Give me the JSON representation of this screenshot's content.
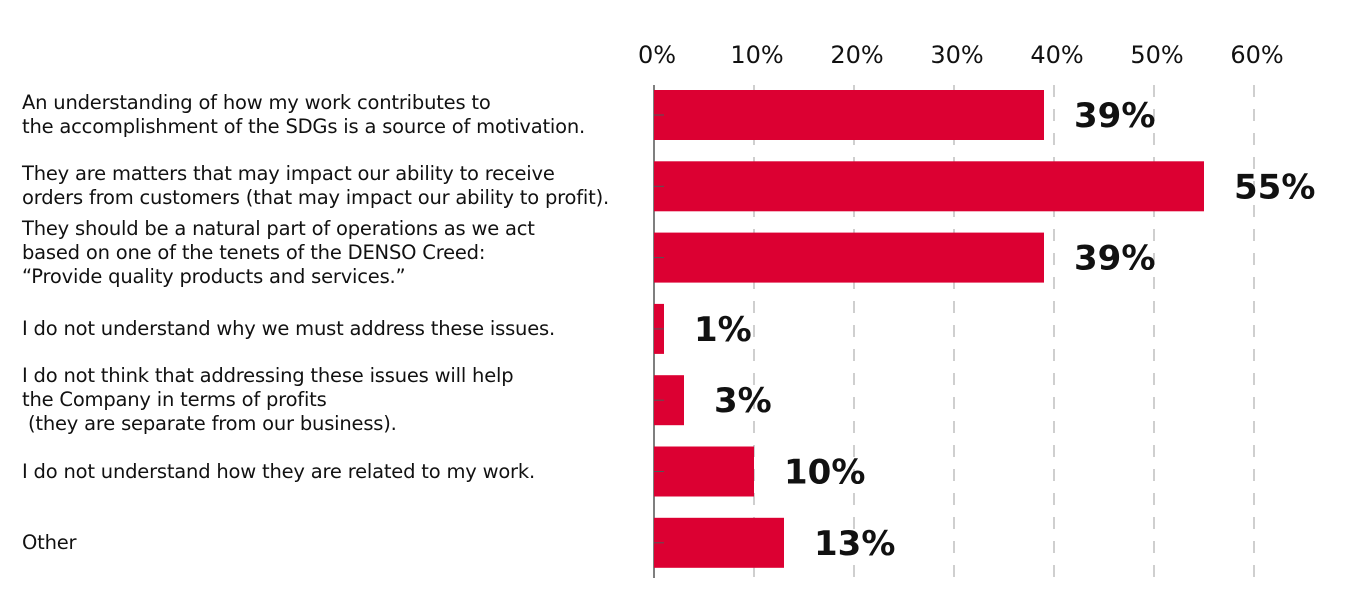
{
  "chart_data": {
    "type": "bar",
    "orientation": "horizontal",
    "categories": [
      [
        "An understanding of how my work contributes to",
        "the accomplishment of the SDGs is a source of motivation."
      ],
      [
        "They are matters that may impact our ability to receive",
        "orders from customers (that may impact our ability to profit)."
      ],
      [
        "They should be a natural part of operations as we act",
        "based on one of the tenets of the DENSO Creed:",
        "“Provide quality products and services.”"
      ],
      [
        "I do not understand why we must address these issues."
      ],
      [
        "I do not think that addressing these issues will help",
        "the Company in terms of profits",
        " (they are separate from our business)."
      ],
      [
        "I do not understand how they are related to my work."
      ],
      [
        "Other"
      ]
    ],
    "values": [
      39,
      55,
      39,
      1,
      3,
      10,
      13
    ],
    "data_labels": [
      "39%",
      "55%",
      "39%",
      "1%",
      "3%",
      "10%",
      "13%"
    ],
    "xlim": [
      0,
      60
    ],
    "x_ticks": [
      "0%",
      "10%",
      "20%",
      "30%",
      "40%",
      "50%",
      "60%"
    ],
    "x_axis_position": "top",
    "grid": true,
    "bar_color": "#DC0032"
  }
}
